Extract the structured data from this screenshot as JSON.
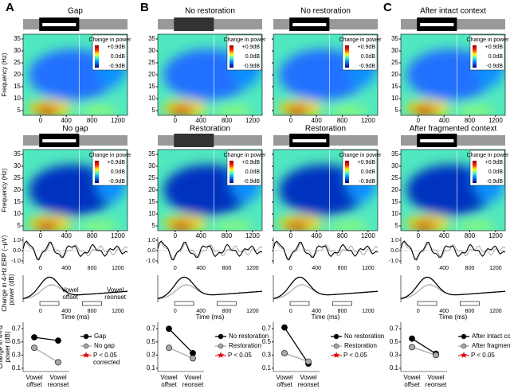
{
  "panel_labels": [
    "A",
    "B",
    "C"
  ],
  "heatmap_titles": [
    "Gap",
    "No restoration",
    "No restoration",
    "After intact context",
    "No gap",
    "Restoration",
    "Restoration",
    "After fragmented context"
  ],
  "colorbar": {
    "title": "Change in power",
    "labels": [
      "+0.9dB",
      "0.0dB",
      "-0.9dB"
    ]
  },
  "frequency_axis": {
    "label": "Frequency (Hz)",
    "lim": [
      3,
      37
    ],
    "ticks": [
      5,
      10,
      15,
      20,
      25,
      30,
      35
    ]
  },
  "time_axis": {
    "label": "Time (ms)",
    "lim": [
      -270,
      1350
    ],
    "ticks": [
      0,
      400,
      800,
      1200
    ]
  },
  "erp_axis": {
    "label": "ERP (−μV)",
    "lim": [
      -1.3,
      1.3
    ],
    "ticks": [
      {
        "value": 1,
        "label": "1.0"
      },
      {
        "value": 0,
        "label": "0.0"
      },
      {
        "value": -1,
        "label": "-1.0"
      }
    ]
  },
  "power_axis_label": "Change in 4-Hz power (dB)",
  "vowel_labels": [
    "Vowel offset",
    "Vowel reonset"
  ],
  "chart_data": [
    {
      "type": "dot",
      "categories": [
        "Vowel offset",
        "Vowel reonset"
      ],
      "ylabel": "Change in 4-Hz power (dB)",
      "ylim": [
        0.05,
        0.8
      ],
      "yticks": [
        0.1,
        0.3,
        0.5,
        0.7
      ],
      "series": [
        {
          "name": "Gap",
          "color": "#000000",
          "values": [
            0.57,
            0.52
          ]
        },
        {
          "name": "No gap",
          "color": "#aaaaaa",
          "values": [
            0.41,
            0.19
          ]
        }
      ],
      "significance": "P < 0.05 corrected"
    },
    {
      "type": "dot",
      "categories": [
        "Vowel offset",
        "Vowel reonset"
      ],
      "ylim": [
        0.05,
        0.8
      ],
      "yticks": [
        0.1,
        0.3,
        0.5,
        0.7
      ],
      "series": [
        {
          "name": "No restoration",
          "color": "#000000",
          "values": [
            0.7,
            0.33
          ]
        },
        {
          "name": "Restoration",
          "color": "#aaaaaa",
          "values": [
            0.41,
            0.25
          ]
        }
      ],
      "significance": "P < 0.05"
    },
    {
      "type": "dot",
      "categories": [
        "Vowel offset",
        "Vowel reonset"
      ],
      "ylim": [
        0.05,
        0.8
      ],
      "yticks": [
        0.1,
        0.3,
        0.5,
        0.7
      ],
      "series": [
        {
          "name": "No restoration",
          "color": "#000000",
          "values": [
            0.72,
            0.17
          ]
        },
        {
          "name": "Restoration",
          "color": "#aaaaaa",
          "values": [
            0.33,
            0.2
          ]
        }
      ],
      "significance": "P < 0.05"
    },
    {
      "type": "dot",
      "categories": [
        "Vowel offset",
        "Vowel reonset"
      ],
      "ylim": [
        0.05,
        0.8
      ],
      "yticks": [
        0.1,
        0.3,
        0.5,
        0.7
      ],
      "series": [
        {
          "name": "After intact context",
          "color": "#000000",
          "values": [
            0.55,
            0.32
          ]
        },
        {
          "name": "After fragmented c.",
          "color": "#aaaaaa",
          "values": [
            0.42,
            0.3
          ]
        }
      ],
      "significance": "P < 0.05"
    }
  ]
}
